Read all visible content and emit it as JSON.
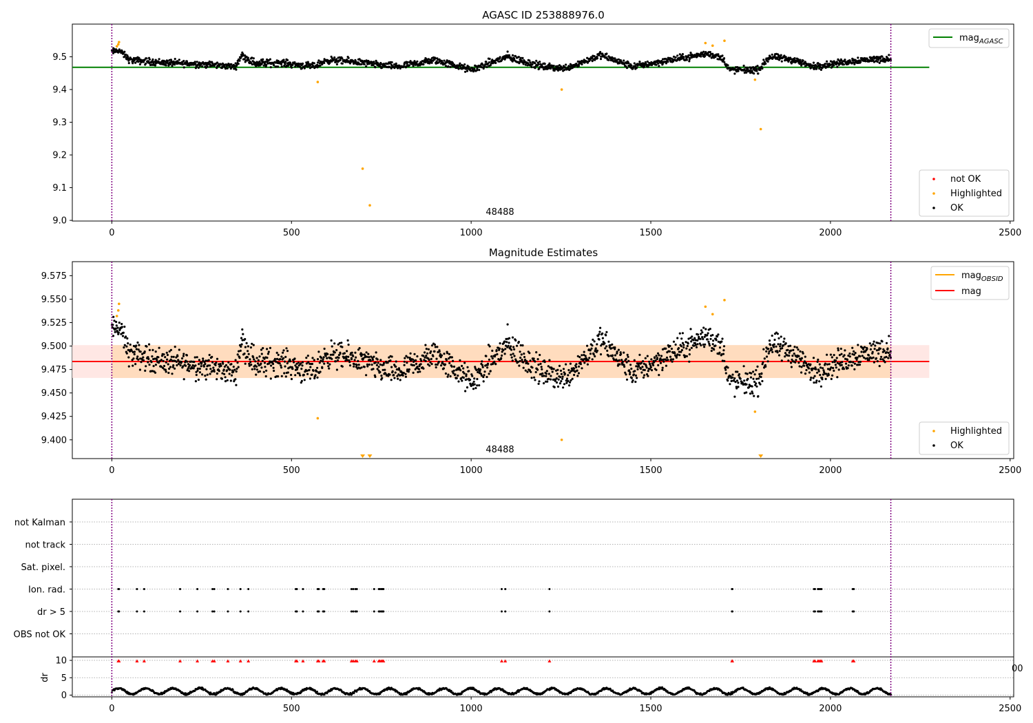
{
  "colors": {
    "ok": "#000000",
    "not_ok": "#ff0000",
    "highlighted": "#ffa500",
    "mag_agasc_line": "#008000",
    "mag_line": "#ff0000",
    "mag_obsid_line": "#ffa500",
    "band_obsid": "#ffdab9",
    "band_mag": "#ffe4e1",
    "obs_boundary": "#800080",
    "grid": "#b0b0b0"
  },
  "panels": {
    "top": {
      "title": "AGASC ID 253888976.0",
      "obsid_label": "48488",
      "legend_lines": [
        {
          "label": "mag",
          "subscript": "AGASC",
          "color_key": "mag_agasc_line"
        }
      ],
      "legend_points": [
        {
          "label": "not OK",
          "color_key": "not_ok"
        },
        {
          "label": "Highlighted",
          "color_key": "highlighted"
        },
        {
          "label": "OK",
          "color_key": "ok"
        }
      ]
    },
    "middle": {
      "title": "Magnitude Estimates",
      "obsid_label": "48488",
      "legend_lines": [
        {
          "label": "mag",
          "subscript": "OBSID",
          "color_key": "mag_obsid_line"
        },
        {
          "label": "mag",
          "subscript": "",
          "color_key": "mag_line"
        }
      ],
      "legend_points": [
        {
          "label": "Highlighted",
          "color_key": "highlighted"
        },
        {
          "label": "OK",
          "color_key": "ok"
        }
      ]
    },
    "bottom": {
      "flag_labels": [
        "not Kalman",
        "not track",
        "Sat. pixel.",
        "Ion. rad.",
        "dr > 5",
        "OBS not OK"
      ],
      "dr_ylabel": "dr",
      "dr_tick_labels": [
        "0",
        "5",
        "10"
      ],
      "clipped_tick_fragment": "00"
    }
  },
  "chart_data": [
    {
      "type": "scatter",
      "title": "AGASC ID 253888976.0",
      "xlim": [
        -110,
        2510
      ],
      "ylim": [
        8.998,
        9.6
      ],
      "xticks": [
        0,
        500,
        1000,
        1500,
        2000,
        2500
      ],
      "yticks": [
        9.0,
        9.1,
        9.2,
        9.3,
        9.4,
        9.5
      ],
      "observation_bounds": [
        0,
        2168
      ],
      "series": [
        {
          "name": "mag_AGASC",
          "kind": "hline",
          "y": 9.468,
          "x_range": [
            -110,
            2275
          ]
        },
        {
          "name": "Highlighted",
          "kind": "points",
          "x": [
            14,
            18,
            20,
            573,
            698,
            718,
            1252,
            1652,
            1672,
            1705,
            1790,
            1806
          ],
          "y": [
            9.532,
            9.538,
            9.545,
            9.423,
            9.158,
            9.046,
            9.4,
            9.542,
            9.534,
            9.549,
            9.43,
            9.279
          ]
        },
        {
          "name": "not OK",
          "kind": "points",
          "x": [],
          "y": []
        },
        {
          "name": "OK",
          "kind": "series",
          "segments": [
            [
              0,
              9.515,
              0.012
            ],
            [
              20,
              9.52,
              0.01
            ],
            [
              50,
              9.49,
              0.012
            ],
            [
              150,
              9.482,
              0.012
            ],
            [
              250,
              9.478,
              0.012
            ],
            [
              345,
              9.47,
              0.01
            ],
            [
              360,
              9.505,
              0.012
            ],
            [
              400,
              9.48,
              0.015
            ],
            [
              470,
              9.482,
              0.012
            ],
            [
              560,
              9.47,
              0.012
            ],
            [
              600,
              9.49,
              0.012
            ],
            [
              680,
              9.485,
              0.012
            ],
            [
              740,
              9.475,
              0.012
            ],
            [
              800,
              9.47,
              0.012
            ],
            [
              900,
              9.49,
              0.013
            ],
            [
              1000,
              9.46,
              0.012
            ],
            [
              1100,
              9.5,
              0.015
            ],
            [
              1200,
              9.47,
              0.012
            ],
            [
              1260,
              9.465,
              0.012
            ],
            [
              1300,
              9.48,
              0.012
            ],
            [
              1360,
              9.505,
              0.012
            ],
            [
              1450,
              9.47,
              0.012
            ],
            [
              1580,
              9.495,
              0.012
            ],
            [
              1660,
              9.51,
              0.012
            ],
            [
              1700,
              9.495,
              0.012
            ],
            [
              1720,
              9.46,
              0.012
            ],
            [
              1800,
              9.46,
              0.012
            ],
            [
              1830,
              9.5,
              0.012
            ],
            [
              1900,
              9.49,
              0.012
            ],
            [
              1950,
              9.47,
              0.012
            ],
            [
              2080,
              9.49,
              0.012
            ],
            [
              2168,
              9.495,
              0.012
            ]
          ],
          "n_points": 1800
        }
      ]
    },
    {
      "type": "scatter",
      "title": "Magnitude Estimates",
      "xlim": [
        -110,
        2510
      ],
      "ylim": [
        9.38,
        9.59
      ],
      "xticks": [
        0,
        500,
        1000,
        1500,
        2000,
        2500
      ],
      "yticks": [
        9.4,
        9.425,
        9.45,
        9.475,
        9.5,
        9.525,
        9.55,
        9.575
      ],
      "observation_bounds": [
        0,
        2168
      ],
      "bands": [
        {
          "name": "mag",
          "y_range": [
            9.466,
            9.501
          ],
          "x_range": [
            -110,
            2275
          ],
          "color_key": "band_mag"
        },
        {
          "name": "mag_OBSID",
          "y_range": [
            9.466,
            9.501
          ],
          "x_range": [
            0,
            2168
          ],
          "color_key": "band_obsid"
        }
      ],
      "series": [
        {
          "name": "mag_OBSID",
          "kind": "hline",
          "y": 9.4835,
          "x_range": [
            0,
            2168
          ]
        },
        {
          "name": "mag",
          "kind": "hline",
          "y": 9.4835,
          "x_range": [
            -110,
            2275
          ]
        },
        {
          "name": "Highlighted",
          "kind": "points",
          "x": [
            14,
            18,
            20,
            573,
            1252,
            1652,
            1672,
            1705,
            1790
          ],
          "y": [
            9.532,
            9.538,
            9.545,
            9.423,
            9.4,
            9.542,
            9.534,
            9.549,
            9.43
          ]
        },
        {
          "name": "Highlighted (below axis)",
          "kind": "markers",
          "x": [
            698,
            718,
            1806
          ],
          "y_edge": "bottom"
        },
        {
          "name": "OK",
          "kind": "series",
          "same_as": "top.OK",
          "spread_scale": 1.3
        }
      ]
    },
    {
      "type": "scatter",
      "title": "",
      "xlim": [
        -110,
        2510
      ],
      "xticks": [
        0,
        500,
        1000,
        1500,
        2000,
        2500
      ],
      "observation_bounds": [
        0,
        2168
      ],
      "flag_rows": [
        "not Kalman",
        "not track",
        "Sat. pixel.",
        "Ion. rad.",
        "dr > 5",
        "OBS not OK"
      ],
      "flagged_x": [
        18,
        20,
        70,
        90,
        190,
        238,
        280,
        285,
        323,
        358,
        380,
        512,
        515,
        532,
        573,
        576,
        588,
        591,
        667,
        672,
        678,
        682,
        730,
        743,
        746,
        750,
        753,
        756,
        1085,
        1095,
        1218,
        1726,
        1727,
        1954,
        1957,
        1965,
        1968,
        1972,
        1975,
        2062,
        2065
      ],
      "flagged_rows": [
        "Ion. rad.",
        "dr > 5"
      ],
      "dr": {
        "ylim": [
          -0.5,
          11
        ],
        "yticks": [
          0,
          5,
          10
        ],
        "clip_value": 10,
        "clipped_x": [
          18,
          20,
          70,
          90,
          190,
          238,
          280,
          285,
          323,
          358,
          380,
          512,
          515,
          532,
          573,
          576,
          588,
          591,
          667,
          672,
          678,
          682,
          730,
          743,
          746,
          750,
          753,
          756,
          1085,
          1095,
          1218,
          1726,
          1727,
          1954,
          1957,
          1965,
          1968,
          1972,
          1975,
          2062,
          2065
        ],
        "typical_range": [
          0.0,
          2.5
        ]
      }
    }
  ]
}
